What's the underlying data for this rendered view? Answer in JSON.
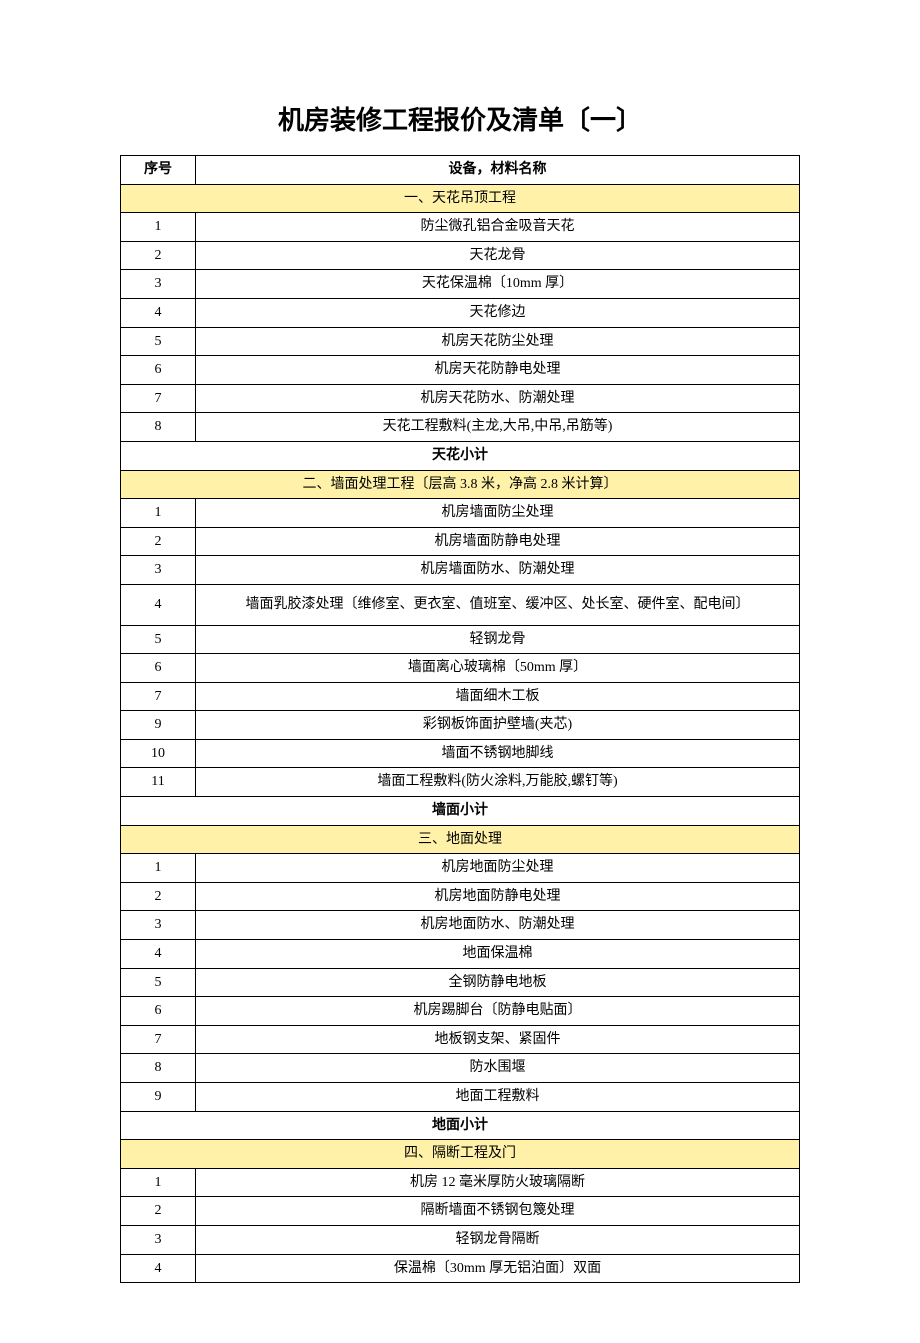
{
  "title": "机房装修工程报价及清单〔一〕",
  "columns": {
    "index": "序号",
    "name": "设备，材料名称"
  },
  "colors": {
    "section_bg": "#fff2a8",
    "border": "#000000",
    "page_bg": "#ffffff"
  },
  "sections": [
    {
      "header": "一、天花吊顶工程",
      "rows": [
        {
          "idx": "1",
          "name": "防尘微孔铝合金吸音天花"
        },
        {
          "idx": "2",
          "name": "天花龙骨"
        },
        {
          "idx": "3",
          "name": "天花保温棉〔10mm 厚〕"
        },
        {
          "idx": "4",
          "name": "天花修边"
        },
        {
          "idx": "5",
          "name": "机房天花防尘处理"
        },
        {
          "idx": "6",
          "name": "机房天花防静电处理"
        },
        {
          "idx": "7",
          "name": "机房天花防水、防潮处理"
        },
        {
          "idx": "8",
          "name": "天花工程敷料(主龙,大吊,中吊,吊筋等)"
        }
      ],
      "subtotal": "天花小计"
    },
    {
      "header": "二、墙面处理工程〔层高 3.8 米，净高 2.8 米计算〕",
      "rows": [
        {
          "idx": "1",
          "name": "机房墙面防尘处理"
        },
        {
          "idx": "2",
          "name": "机房墙面防静电处理"
        },
        {
          "idx": "3",
          "name": "机房墙面防水、防潮处理"
        },
        {
          "idx": "4",
          "name": "墙面乳胶漆处理〔维修室、更衣室、值班室、缓冲区、处长室、硬件室、配电间〕",
          "tall": true
        },
        {
          "idx": "5",
          "name": "轻钢龙骨"
        },
        {
          "idx": "6",
          "name": "墙面离心玻璃棉〔50mm 厚〕"
        },
        {
          "idx": "7",
          "name": "墙面细木工板"
        },
        {
          "idx": "9",
          "name": "彩钢板饰面护壁墙(夹芯)"
        },
        {
          "idx": "10",
          "name": "墙面不锈钢地脚线"
        },
        {
          "idx": "11",
          "name": "墙面工程敷料(防火涂料,万能胶,螺钉等)"
        }
      ],
      "subtotal": "墙面小计"
    },
    {
      "header": "三、地面处理",
      "rows": [
        {
          "idx": "1",
          "name": "机房地面防尘处理"
        },
        {
          "idx": "2",
          "name": "机房地面防静电处理"
        },
        {
          "idx": "3",
          "name": "机房地面防水、防潮处理"
        },
        {
          "idx": "4",
          "name": "地面保温棉"
        },
        {
          "idx": "5",
          "name": "全钢防静电地板"
        },
        {
          "idx": "6",
          "name": "机房踢脚台〔防静电贴面〕"
        },
        {
          "idx": "7",
          "name": "地板钢支架、紧固件"
        },
        {
          "idx": "8",
          "name": "防水围堰"
        },
        {
          "idx": "9",
          "name": "地面工程敷料"
        }
      ],
      "subtotal": "地面小计"
    },
    {
      "header": "四、隔断工程及门",
      "rows": [
        {
          "idx": "1",
          "name": "机房 12 毫米厚防火玻璃隔断"
        },
        {
          "idx": "2",
          "name": "隔断墙面不锈钢包篾处理"
        },
        {
          "idx": "3",
          "name": "轻钢龙骨隔断"
        },
        {
          "idx": "4",
          "name": "保温棉〔30mm 厚无铝泊面〕双面"
        }
      ]
    }
  ]
}
